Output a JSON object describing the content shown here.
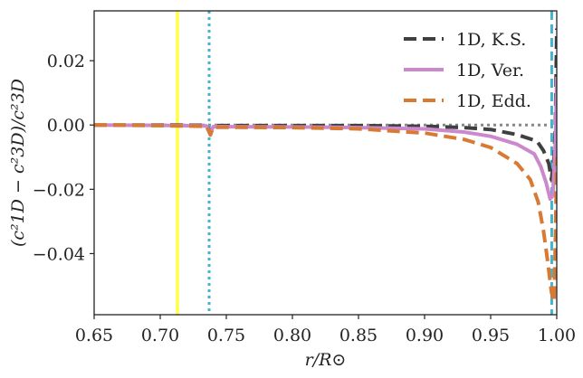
{
  "chart_data": {
    "type": "line",
    "xlabel": "r/R⊙",
    "ylabel": "(c²1D − c²3D)/c²3D",
    "xlim": [
      0.65,
      1.0
    ],
    "ylim": [
      -0.059,
      0.0355
    ],
    "grid": false,
    "legend_position": "top-right",
    "x_ticks": [
      0.65,
      0.7,
      0.75,
      0.8,
      0.85,
      0.9,
      0.95,
      1.0
    ],
    "x_tick_labels": [
      "0.65",
      "0.70",
      "0.75",
      "0.80",
      "0.85",
      "0.90",
      "0.95",
      "1.00"
    ],
    "y_ticks": [
      0.02,
      0.0,
      -0.02,
      -0.04
    ],
    "y_tick_labels": [
      "0.02",
      "0.00",
      "−0.02",
      "−0.04"
    ],
    "series": [
      {
        "name": "1D, K.S.",
        "color": "#404040",
        "dash": "dashed",
        "points": [
          [
            0.65,
            0.0
          ],
          [
            0.7,
            0.0
          ],
          [
            0.735,
            -0.0001
          ],
          [
            0.738,
            -0.0025
          ],
          [
            0.74,
            -0.0002
          ],
          [
            0.8,
            -0.0002
          ],
          [
            0.85,
            -0.0002
          ],
          [
            0.9,
            -0.0004
          ],
          [
            0.93,
            -0.0008
          ],
          [
            0.95,
            -0.0014
          ],
          [
            0.97,
            -0.003
          ],
          [
            0.985,
            -0.005
          ],
          [
            0.99,
            -0.008
          ],
          [
            0.994,
            -0.012
          ],
          [
            0.996,
            -0.017
          ],
          [
            0.998,
            -0.01
          ],
          [
            0.999,
            0.0
          ],
          [
            1.0,
            0.03
          ]
        ]
      },
      {
        "name": "1D, Ver.",
        "color": "#cc88cc",
        "dash": "solid",
        "points": [
          [
            0.65,
            0.0
          ],
          [
            0.7,
            -0.0001
          ],
          [
            0.735,
            -0.0003
          ],
          [
            0.738,
            -0.0028
          ],
          [
            0.74,
            -0.0005
          ],
          [
            0.8,
            -0.0006
          ],
          [
            0.85,
            -0.0008
          ],
          [
            0.9,
            -0.0012
          ],
          [
            0.93,
            -0.0022
          ],
          [
            0.95,
            -0.0035
          ],
          [
            0.97,
            -0.006
          ],
          [
            0.983,
            -0.009
          ],
          [
            0.988,
            -0.013
          ],
          [
            0.992,
            -0.018
          ],
          [
            0.995,
            -0.023
          ],
          [
            0.997,
            -0.022
          ],
          [
            0.999,
            -0.005
          ],
          [
            1.0,
            0.015
          ]
        ]
      },
      {
        "name": "1D, Edd.",
        "color": "#d97a34",
        "dash": "dashed",
        "points": [
          [
            0.65,
            0.0
          ],
          [
            0.7,
            -0.0002
          ],
          [
            0.735,
            -0.0004
          ],
          [
            0.738,
            -0.0031
          ],
          [
            0.74,
            -0.0007
          ],
          [
            0.8,
            -0.0008
          ],
          [
            0.85,
            -0.0012
          ],
          [
            0.9,
            -0.0025
          ],
          [
            0.93,
            -0.0045
          ],
          [
            0.95,
            -0.007
          ],
          [
            0.97,
            -0.012
          ],
          [
            0.98,
            -0.017
          ],
          [
            0.986,
            -0.024
          ],
          [
            0.99,
            -0.033
          ],
          [
            0.993,
            -0.042
          ],
          [
            0.996,
            -0.052
          ],
          [
            0.998,
            -0.055
          ],
          [
            0.999,
            -0.035
          ],
          [
            1.0,
            -0.01
          ]
        ]
      }
    ],
    "reference_lines": [
      {
        "orientation": "horizontal",
        "value": 0.0,
        "color": "#888888",
        "style": "dotted"
      },
      {
        "orientation": "vertical",
        "value": 0.713,
        "color": "#ffff44",
        "style": "solid"
      },
      {
        "orientation": "vertical",
        "value": 0.737,
        "color": "#44b4cc",
        "style": "dotted"
      },
      {
        "orientation": "vertical",
        "value": 0.9962,
        "color": "#44b4cc",
        "style": "dashed"
      }
    ]
  }
}
